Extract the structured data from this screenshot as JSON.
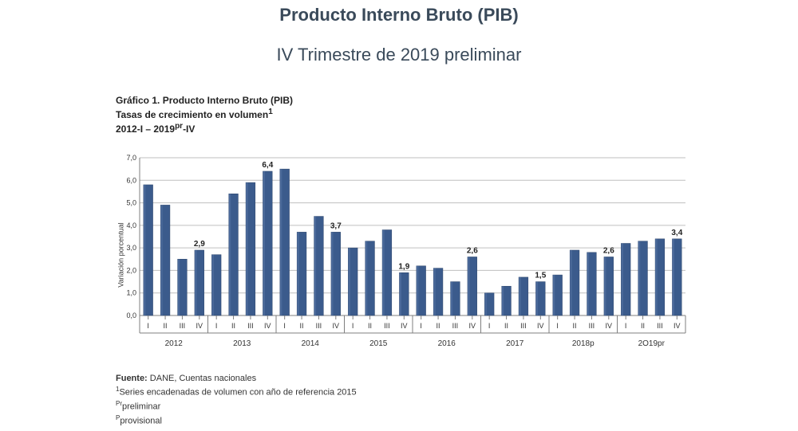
{
  "title": "Producto Interno Bruto (PIB)",
  "subtitle": "IV Trimestre de 2019 preliminar",
  "caption": {
    "line1": "Gráfico 1. Producto Interno Bruto (PIB)",
    "line2_before_sup": "Tasas de crecimiento en volumen",
    "line2_sup": "1",
    "line3_a": "2012-I – 2019",
    "line3_sup": "pr",
    "line3_b": "-IV"
  },
  "ylabel": "Variación porcentual",
  "footnotes": {
    "fuente_label": "Fuente:",
    "fuente_text": " DANE, Cuentas nacionales",
    "note1_sup": "1",
    "note1_text": "Series encadenadas de volumen con año de referencia 2015",
    "note2_sup": "Pr",
    "note2_text": "preliminar",
    "note3_sup": "P",
    "note3_text": "provisional"
  },
  "chart": {
    "type": "bar",
    "ylim": [
      0,
      7
    ],
    "ytick_step": 1,
    "ytick_labels": [
      "0,0",
      "1,0",
      "2,0",
      "3,0",
      "4,0",
      "5,0",
      "6,0",
      "7,0"
    ],
    "grid_color": "#bfbfbf",
    "axis_color": "#7f7f7f",
    "bar_color": "#3b5b8c",
    "bar_border": "#2e466b",
    "background_color": "#ffffff",
    "label_font_size": 9,
    "value_label_font_size": 10,
    "year_font_size": 10,
    "bar_width_ratio": 0.55,
    "groups": [
      {
        "year": "2012",
        "quarters": [
          "I",
          "II",
          "III",
          "IV"
        ],
        "values": [
          5.8,
          4.9,
          2.5,
          2.9
        ],
        "final_label": "2,9"
      },
      {
        "year": "2013",
        "quarters": [
          "I",
          "II",
          "III",
          "IV"
        ],
        "values": [
          2.7,
          5.4,
          5.9,
          6.4
        ],
        "final_label": "6,4"
      },
      {
        "year": "2014",
        "quarters": [
          "I",
          "II",
          "III",
          "IV"
        ],
        "values": [
          6.5,
          3.7,
          4.4,
          3.7
        ],
        "final_label": "3,7"
      },
      {
        "year": "2015",
        "quarters": [
          "I",
          "II",
          "III",
          "IV"
        ],
        "values": [
          3.0,
          3.3,
          3.8,
          1.9
        ],
        "final_label": "1,9"
      },
      {
        "year": "2016",
        "quarters": [
          "I",
          "II",
          "III",
          "IV"
        ],
        "values": [
          2.2,
          2.1,
          1.5,
          2.6
        ],
        "final_label": "2,6"
      },
      {
        "year": "2017",
        "quarters": [
          "I",
          "II",
          "III",
          "IV"
        ],
        "values": [
          1.0,
          1.3,
          1.7,
          1.5
        ],
        "final_label": "1,5"
      },
      {
        "year": "2018p",
        "quarters": [
          "I",
          "II",
          "III",
          "IV"
        ],
        "values": [
          1.8,
          2.9,
          2.8,
          2.6
        ],
        "final_label": "2,6"
      },
      {
        "year": "2O19pr",
        "quarters": [
          "I",
          "II",
          "III",
          "IV"
        ],
        "values": [
          3.2,
          3.3,
          3.4,
          3.4
        ],
        "final_label": "3,4"
      }
    ]
  }
}
